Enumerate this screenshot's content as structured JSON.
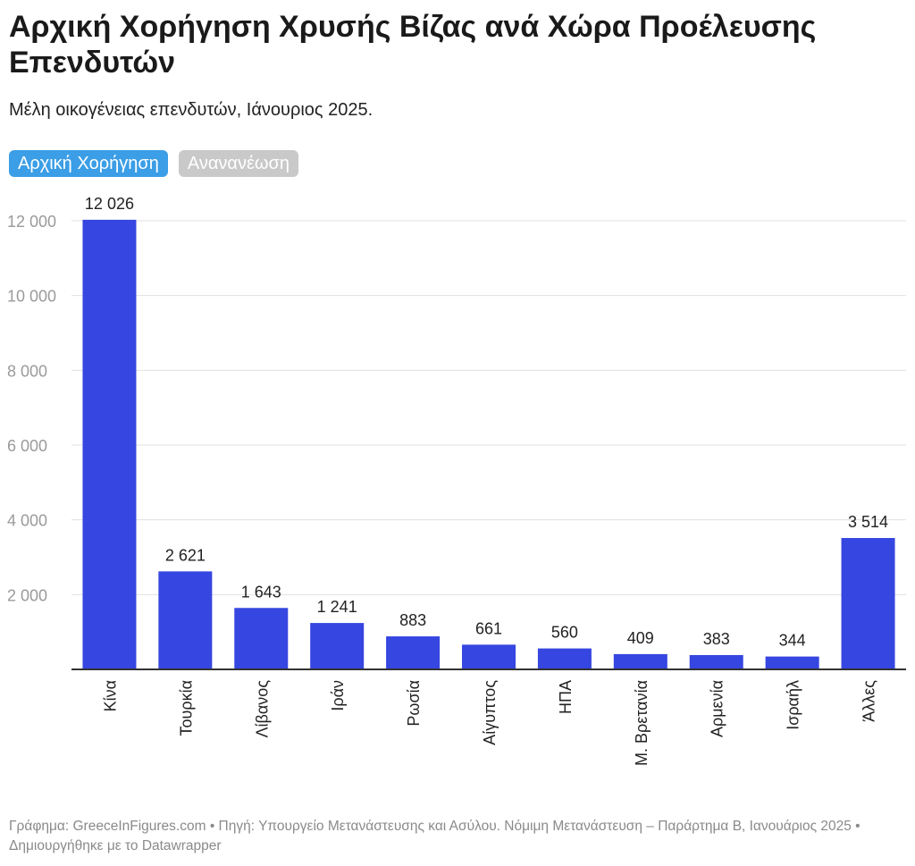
{
  "title": "Αρχική Χορήγηση Χρυσής Βίζας ανά Χώρα Προέλευσης Επενδυτών",
  "subtitle": "Μέλη οικογένειας επενδυτών, Ιάνουριος 2025.",
  "toggles": [
    {
      "label": "Αρχική Χορήγηση",
      "active": true
    },
    {
      "label": "Ανανανέωση",
      "active": false
    }
  ],
  "colors": {
    "bar": "#3646e0",
    "active_toggle": "#3b9ee6",
    "inactive_toggle": "#c9c9c9",
    "grid": "#e0e0e0",
    "tick": "#9a9a9a"
  },
  "chart_data": {
    "type": "bar",
    "categories": [
      "Κίνα",
      "Τουρκία",
      "Λίβανος",
      "Ιράν",
      "Ρωσία",
      "Αίγυπτος",
      "ΗΠΑ",
      "Μ. Βρετανία",
      "Αρμενία",
      "Ισραήλ",
      "Άλλες"
    ],
    "values": [
      12026,
      2621,
      1643,
      1241,
      883,
      661,
      560,
      409,
      383,
      344,
      3514
    ],
    "value_labels": [
      "12 026",
      "2 621",
      "1 643",
      "1 241",
      "883",
      "661",
      "560",
      "409",
      "383",
      "344",
      "3 514"
    ],
    "yticks": [
      2000,
      4000,
      6000,
      8000,
      10000,
      12000
    ],
    "ytick_labels": [
      "2 000",
      "4 000",
      "6 000",
      "8 000",
      "10 000",
      "12 000"
    ],
    "ylim": [
      0,
      12000
    ],
    "grid": true
  },
  "footer": "Γράφημα: GreeceInFigures.com • Πηγή: Υπουργείο Μετανάστευσης και Ασύλου. Νόμιμη Μετανάστευση – Παράρτημα Β, Ιανουάριος 2025 • Δημιουργήθηκε με το Datawrapper"
}
